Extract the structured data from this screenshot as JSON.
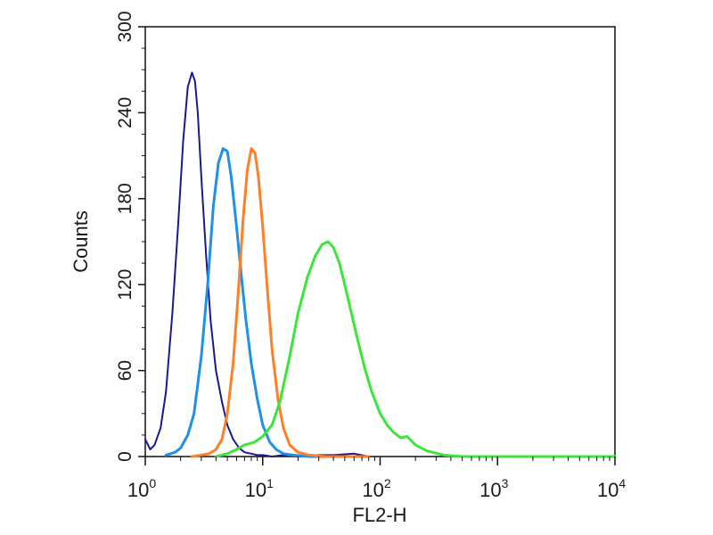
{
  "chart_data": {
    "type": "line",
    "title": "",
    "xlabel": "FL2-H",
    "ylabel": "Counts",
    "xscale": "log",
    "xlim": [
      1,
      10000
    ],
    "ylim": [
      0,
      300
    ],
    "x_ticks": [
      {
        "value": 1,
        "base": "10",
        "exp": "0"
      },
      {
        "value": 10,
        "base": "10",
        "exp": "1"
      },
      {
        "value": 100,
        "base": "10",
        "exp": "2"
      },
      {
        "value": 1000,
        "base": "10",
        "exp": "3"
      },
      {
        "value": 10000,
        "base": "10",
        "exp": "4"
      }
    ],
    "y_ticks": [
      0,
      60,
      120,
      180,
      240,
      300
    ],
    "grid": false,
    "legend": "none",
    "series": [
      {
        "color": "#1a1a8c",
        "stroke_width": 2,
        "x": [
          1.0,
          1.1,
          1.2,
          1.35,
          1.5,
          1.7,
          1.9,
          2.1,
          2.3,
          2.5,
          2.65,
          2.8,
          3.0,
          3.3,
          3.6,
          4.0,
          4.5,
          5.0,
          5.6,
          6.3,
          7.0,
          8.0,
          9.0,
          10.0,
          12.0,
          15.0,
          20.0,
          30.0,
          40.0,
          60.0,
          80.0
        ],
        "y": [
          12,
          5,
          8,
          20,
          45,
          100,
          160,
          220,
          258,
          268,
          262,
          240,
          195,
          140,
          95,
          60,
          38,
          22,
          12,
          6,
          3,
          2,
          1,
          1,
          0,
          1,
          0,
          1,
          1,
          2,
          0
        ]
      },
      {
        "color": "#1e90e6",
        "stroke_width": 3,
        "x": [
          1.5,
          1.8,
          2.0,
          2.3,
          2.6,
          3.0,
          3.4,
          3.8,
          4.2,
          4.6,
          5.0,
          5.4,
          6.0,
          6.6,
          7.2,
          8.0,
          9.0,
          10.0,
          11.5,
          13.0,
          15.0,
          18.0,
          25.0,
          40.0
        ],
        "y": [
          1,
          3,
          6,
          15,
          30,
          70,
          120,
          175,
          205,
          215,
          213,
          195,
          160,
          125,
          95,
          65,
          40,
          22,
          10,
          5,
          2,
          1,
          0,
          0
        ]
      },
      {
        "color": "#ff7f27",
        "stroke_width": 3,
        "x": [
          2.5,
          3.0,
          3.5,
          4.0,
          4.5,
          5.0,
          5.6,
          6.2,
          6.8,
          7.4,
          8.0,
          8.6,
          9.2,
          10.0,
          11.0,
          12.0,
          13.5,
          15.0,
          17.0,
          20.0,
          25.0,
          35.0,
          50.0,
          80.0
        ],
        "y": [
          0,
          1,
          2,
          5,
          12,
          30,
          65,
          115,
          165,
          200,
          215,
          212,
          195,
          160,
          115,
          75,
          40,
          20,
          8,
          3,
          1,
          0,
          0,
          0
        ]
      },
      {
        "color": "#3ce53c",
        "stroke_width": 3,
        "x": [
          4.0,
          5.0,
          6.0,
          7.0,
          8.5,
          10.0,
          12.0,
          14.0,
          17.0,
          20.0,
          24.0,
          28.0,
          32.0,
          36.0,
          40.0,
          45.0,
          50.0,
          57.0,
          65.0,
          75.0,
          85.0,
          100.0,
          115.0,
          130.0,
          150.0,
          170.0,
          200.0,
          250.0,
          350.0,
          500.0,
          700.0,
          1000.0,
          3000.0,
          10000.0
        ],
        "y": [
          0,
          2,
          5,
          8,
          10,
          14,
          22,
          38,
          70,
          100,
          125,
          140,
          148,
          150,
          146,
          135,
          120,
          100,
          80,
          60,
          45,
          30,
          22,
          17,
          13,
          14,
          8,
          4,
          1,
          0,
          0,
          0,
          0,
          0
        ]
      }
    ]
  }
}
